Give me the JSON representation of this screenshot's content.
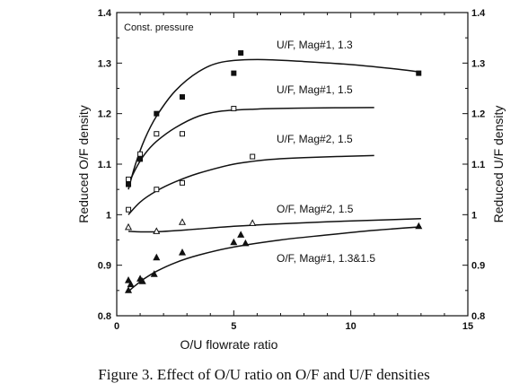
{
  "figure": {
    "caption": "Figure 3.  Effect of O/U ratio on O/F and U/F densities"
  },
  "chart_data": {
    "type": "scatter",
    "xlabel": "O/U flowrate ratio",
    "ylabel": "Reduced O/F density",
    "ylabel_right": "Reduced U/F density",
    "annotation": "Const. pressure",
    "xlim": [
      0,
      15
    ],
    "ylim": [
      0.8,
      1.4
    ],
    "xticks": [
      "0",
      "5",
      "10",
      "15"
    ],
    "yticks": [
      "0.8",
      "0.9",
      "1",
      "1.1",
      "1.2",
      "1.3",
      "1.4"
    ],
    "grid": false,
    "series": [
      {
        "name": "U/F, Mag#1, 1.3",
        "marker": "filled-square",
        "points": [
          [
            0.5,
            1.06
          ],
          [
            1.0,
            1.11
          ],
          [
            1.7,
            1.2
          ],
          [
            2.8,
            1.233
          ],
          [
            5.0,
            1.28
          ],
          [
            5.3,
            1.32
          ],
          [
            12.9,
            1.28
          ]
        ],
        "curve": [
          [
            0.5,
            1.05
          ],
          [
            0.8,
            1.1
          ],
          [
            1.2,
            1.15
          ],
          [
            1.7,
            1.195
          ],
          [
            2.5,
            1.245
          ],
          [
            3.5,
            1.283
          ],
          [
            4.5,
            1.302
          ],
          [
            6.0,
            1.307
          ],
          [
            8.0,
            1.303
          ],
          [
            10.0,
            1.297
          ],
          [
            12.0,
            1.288
          ],
          [
            13.0,
            1.282
          ]
        ]
      },
      {
        "name": "U/F, Mag#1, 1.5",
        "marker": "open-square",
        "points": [
          [
            0.5,
            1.07
          ],
          [
            1.0,
            1.12
          ],
          [
            1.7,
            1.16
          ],
          [
            2.8,
            1.16
          ],
          [
            5.0,
            1.21
          ]
        ],
        "curve": [
          [
            0.5,
            1.06
          ],
          [
            0.8,
            1.09
          ],
          [
            1.2,
            1.12
          ],
          [
            1.7,
            1.145
          ],
          [
            2.5,
            1.172
          ],
          [
            3.5,
            1.195
          ],
          [
            4.5,
            1.205
          ],
          [
            6.0,
            1.209
          ],
          [
            8.0,
            1.211
          ],
          [
            11.0,
            1.212
          ]
        ]
      },
      {
        "name": "U/F, Mag#2, 1.5",
        "marker": "open-square",
        "points": [
          [
            0.5,
            1.01
          ],
          [
            1.7,
            1.05
          ],
          [
            2.8,
            1.063
          ],
          [
            5.8,
            1.115
          ]
        ],
        "curve": [
          [
            0.5,
            1.0
          ],
          [
            1.0,
            1.025
          ],
          [
            1.7,
            1.047
          ],
          [
            2.5,
            1.065
          ],
          [
            3.5,
            1.082
          ],
          [
            5.0,
            1.1
          ],
          [
            6.5,
            1.109
          ],
          [
            8.0,
            1.113
          ],
          [
            11.0,
            1.117
          ]
        ]
      },
      {
        "name": "O/F, Mag#2, 1.5",
        "marker": "open-triangle",
        "points": [
          [
            0.5,
            0.975
          ],
          [
            1.7,
            0.967
          ],
          [
            2.8,
            0.985
          ],
          [
            5.8,
            0.983
          ]
        ],
        "curve": [
          [
            0.5,
            0.967
          ],
          [
            1.5,
            0.966
          ],
          [
            3.0,
            0.97
          ],
          [
            5.0,
            0.977
          ],
          [
            7.0,
            0.982
          ],
          [
            9.0,
            0.986
          ],
          [
            11.0,
            0.989
          ],
          [
            13.0,
            0.992
          ]
        ]
      },
      {
        "name": "O/F, Mag#1, 1.3&1.5",
        "marker": "filled-triangle",
        "points": [
          [
            0.5,
            0.85
          ],
          [
            0.5,
            0.87
          ],
          [
            0.6,
            0.862
          ],
          [
            1.0,
            0.873
          ],
          [
            1.1,
            0.868
          ],
          [
            1.6,
            0.882
          ],
          [
            1.7,
            0.915
          ],
          [
            2.8,
            0.925
          ],
          [
            5.0,
            0.945
          ],
          [
            5.3,
            0.96
          ],
          [
            5.5,
            0.943
          ],
          [
            12.9,
            0.977
          ]
        ],
        "curve": [
          [
            0.5,
            0.848
          ],
          [
            0.8,
            0.86
          ],
          [
            1.2,
            0.874
          ],
          [
            1.7,
            0.888
          ],
          [
            2.5,
            0.905
          ],
          [
            3.5,
            0.92
          ],
          [
            5.0,
            0.936
          ],
          [
            7.0,
            0.95
          ],
          [
            9.0,
            0.96
          ],
          [
            11.0,
            0.969
          ],
          [
            13.0,
            0.976
          ]
        ]
      }
    ]
  }
}
